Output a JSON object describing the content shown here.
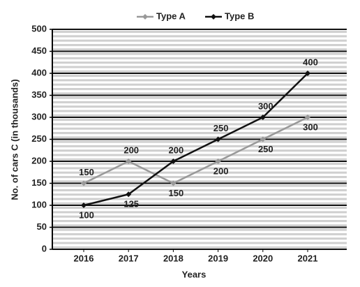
{
  "chart_data": {
    "type": "line",
    "x_label": "Years",
    "y_label": "No. of cars C (in thousands)",
    "categories": [
      "2016",
      "2017",
      "2018",
      "2019",
      "2020",
      "2021"
    ],
    "series": [
      {
        "name": "Type A",
        "color": "#999999",
        "values": [
          150,
          200,
          150,
          200,
          250,
          300
        ]
      },
      {
        "name": "Type B",
        "color": "#111111",
        "values": [
          100,
          125,
          200,
          250,
          300,
          400
        ]
      }
    ],
    "ylim": [
      0,
      500
    ],
    "yticks": [
      0,
      50,
      100,
      150,
      200,
      250,
      300,
      350,
      400,
      450,
      500
    ],
    "grid": true,
    "legend": "top"
  }
}
